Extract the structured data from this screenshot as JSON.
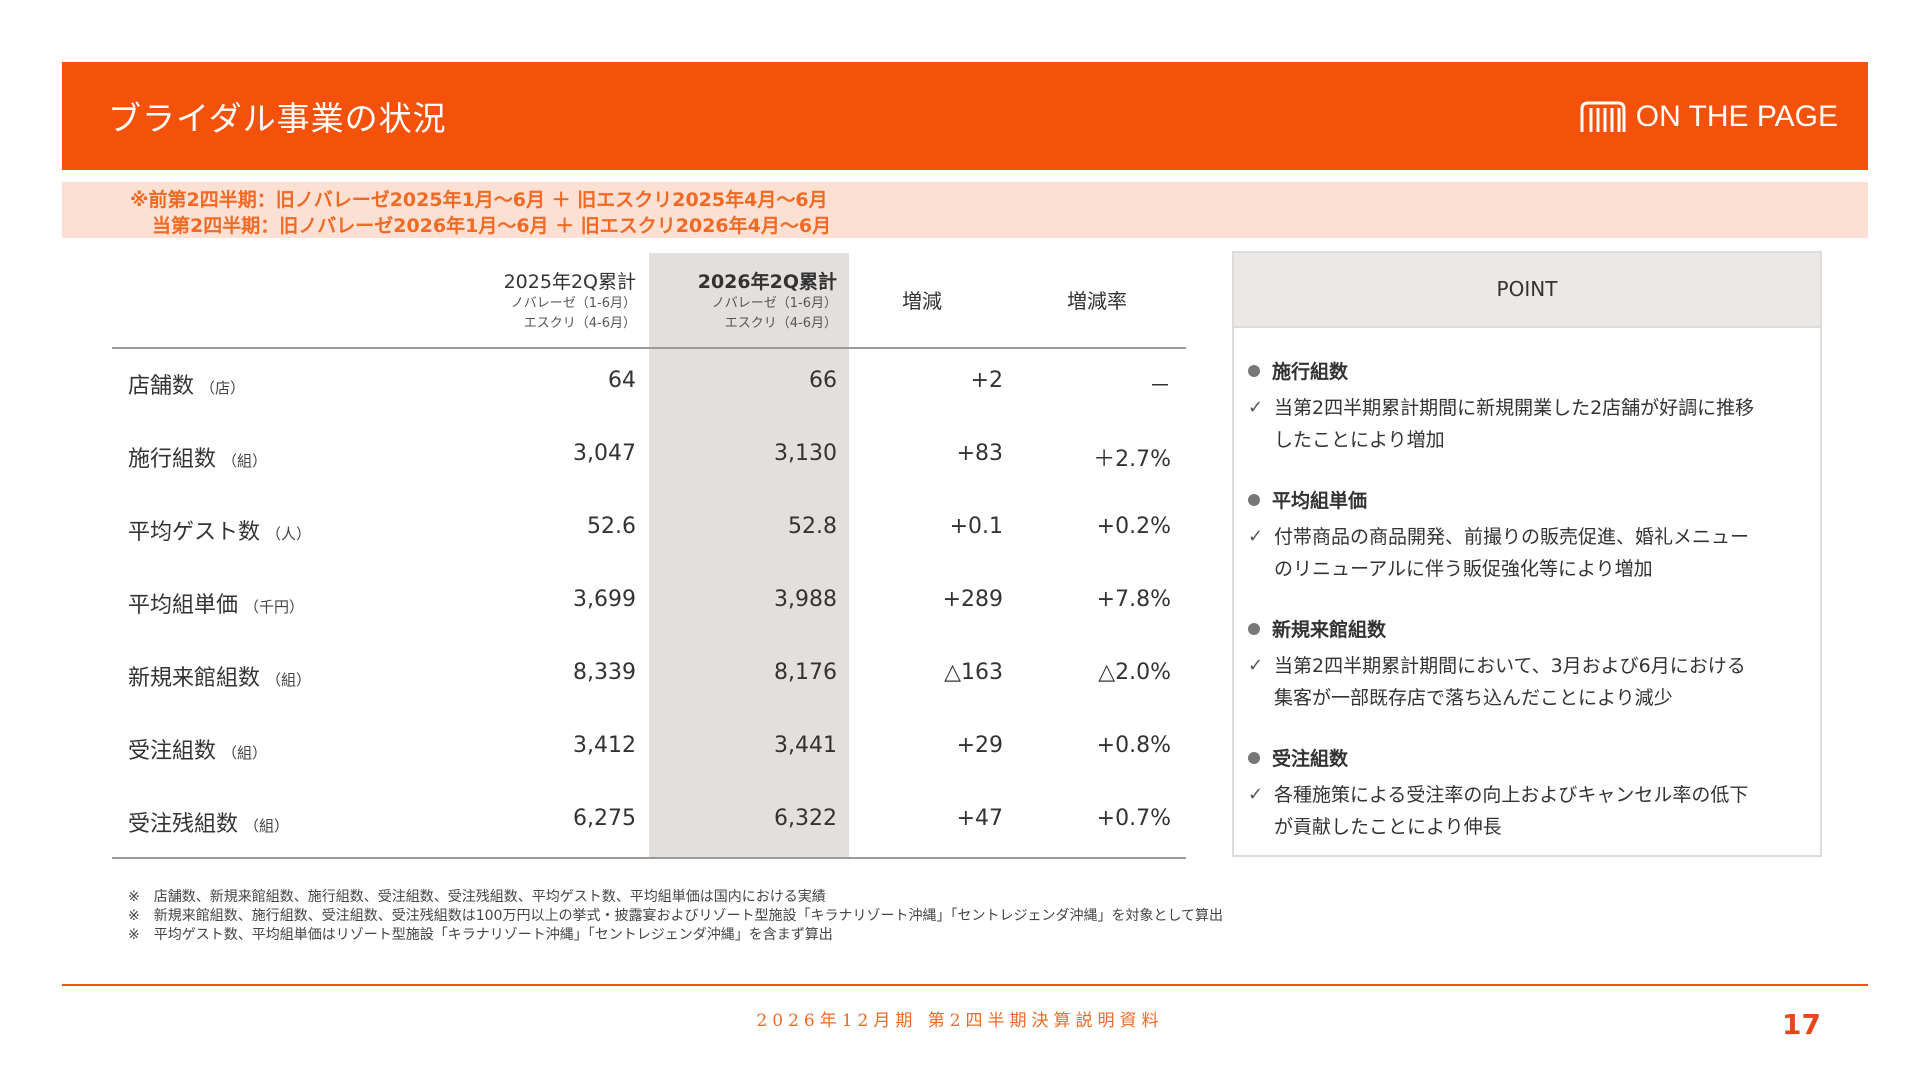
{
  "header": {
    "title": "ブライダル事業の状況",
    "logo_text": "ON THE PAGE",
    "logo_icon": "building-columns-icon"
  },
  "notice": {
    "line1": "※前第2四半期：旧ノバレーゼ2025年1月～6月 ＋ 旧エスクリ2025年4月～6月",
    "line2": "当第2四半期：旧ノバレーゼ2026年1月～6月 ＋ 旧エスクリ2026年4月～6月"
  },
  "table": {
    "headers": {
      "prev": {
        "main": "2025年2Q累計",
        "sub1": "ノバレーゼ（1-6月）",
        "sub2": "エスクリ（4-6月）"
      },
      "curr": {
        "main": "2026年2Q累計",
        "sub1": "ノバレーゼ（1-6月）",
        "sub2": "エスクリ（4-6月）"
      },
      "change": "増減",
      "rate": "増減率"
    },
    "rows": [
      {
        "label": "店舗数",
        "unit": "（店）",
        "prev": "64",
        "curr": "66",
        "change": "+2",
        "rate": "－"
      },
      {
        "label": "施行組数",
        "unit": "（組）",
        "prev": "3,047",
        "curr": "3,130",
        "change": "+83",
        "rate": "＋2.7%"
      },
      {
        "label": "平均ゲスト数",
        "unit": "（人）",
        "prev": "52.6",
        "curr": "52.8",
        "change": "+0.1",
        "rate": "+0.2%"
      },
      {
        "label": "平均組単価",
        "unit": "（千円）",
        "prev": "3,699",
        "curr": "3,988",
        "change": "+289",
        "rate": "+7.8%"
      },
      {
        "label": "新規来館組数",
        "unit": "（組）",
        "prev": "8,339",
        "curr": "8,176",
        "change": "△163",
        "rate": "△2.0%"
      },
      {
        "label": "受注組数",
        "unit": "（組）",
        "prev": "3,412",
        "curr": "3,441",
        "change": "+29",
        "rate": "+0.8%"
      },
      {
        "label": "受注残組数",
        "unit": "（組）",
        "prev": "6,275",
        "curr": "6,322",
        "change": "+47",
        "rate": "+0.7%"
      }
    ]
  },
  "point": {
    "heading": "POINT",
    "items": [
      {
        "title": "施行組数",
        "line1": "当第2四半期累計期間に新規開業した2店舗が好調に推移",
        "line2": "したことにより増加"
      },
      {
        "title": "平均組単価",
        "line1": "付帯商品の商品開発、前撮りの販売促進、婚礼メニュー",
        "line2": "のリニューアルに伴う販促強化等により増加"
      },
      {
        "title": "新規来館組数",
        "line1": "当第2四半期累計期間において、3月および6月における",
        "line2": "集客が一部既存店で落ち込んだことにより減少"
      },
      {
        "title": "受注組数",
        "line1": "各種施策による受注率の向上およびキャンセル率の低下",
        "line2": "が貢献したことにより伸長"
      }
    ]
  },
  "footnotes": [
    "※　店舗数、新規来館組数、施行組数、受注組数、受注残組数、平均ゲスト数、平均組単価は国内における実績",
    "※　新規来館組数、施行組数、受注組数、受注残組数は100万円以上の挙式・披露宴およびリゾート型施設「キラナリゾート沖縄」「セントレジェンダ沖縄」を対象として算出",
    "※　平均ゲスト数、平均組単価はリゾート型施設「キラナリゾート沖縄」「セントレジェンダ沖縄」を含まず算出"
  ],
  "footer": {
    "text": "2026年12月期 第2四半期決算説明資料",
    "page": "17"
  },
  "colors": {
    "accent": "#f4520a",
    "notice_bg": "#fbe0d3",
    "highlight_col": "#e3dfdc"
  }
}
